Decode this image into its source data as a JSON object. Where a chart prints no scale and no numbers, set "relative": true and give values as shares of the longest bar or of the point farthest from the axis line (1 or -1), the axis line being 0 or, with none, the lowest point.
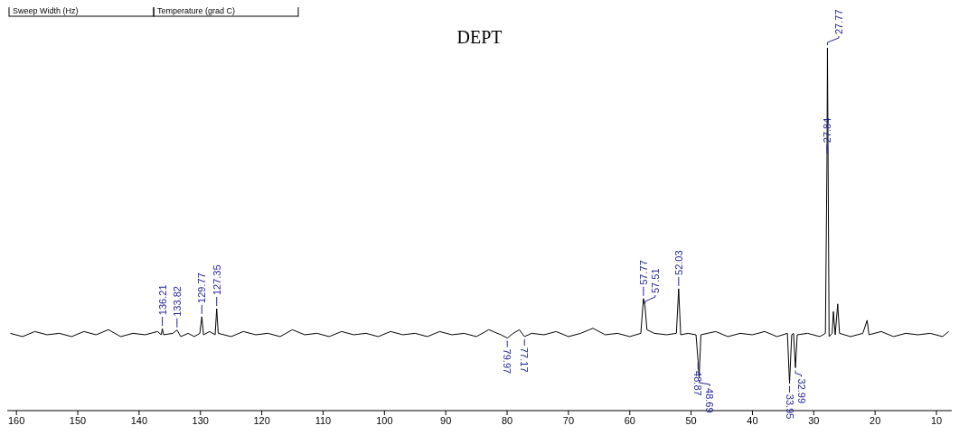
{
  "chart_data": {
    "type": "line",
    "title": "DEPT",
    "relative": true,
    "tick_labels": "x",
    "xlim": [
      161.5,
      7.5
    ],
    "xticks": [
      160,
      150,
      140,
      130,
      120,
      110,
      100,
      90,
      80,
      70,
      60,
      50,
      40,
      30,
      20,
      10
    ],
    "x": [
      161,
      159,
      157,
      155,
      153,
      151,
      149,
      147,
      145,
      143,
      141,
      139,
      137,
      136.4,
      136.21,
      136.0,
      134.5,
      133.82,
      133.2,
      132,
      131,
      130.1,
      129.77,
      129.5,
      128.5,
      127.6,
      127.35,
      127.1,
      125,
      123,
      121,
      119,
      117,
      115,
      113,
      111,
      109,
      107,
      105,
      103,
      101,
      99,
      97,
      95,
      93,
      91,
      89,
      87,
      85,
      83,
      81,
      79.97,
      79,
      78,
      77.17,
      76,
      74,
      72,
      70,
      68,
      66,
      64,
      62,
      60,
      58.2,
      57.77,
      57.51,
      57.2,
      56,
      54,
      52.4,
      52.03,
      51.7,
      50.5,
      49.2,
      48.87,
      48.69,
      48.4,
      46,
      44,
      42,
      40,
      38,
      36,
      34.3,
      33.95,
      33.6,
      33.3,
      32.99,
      32.7,
      31,
      29,
      28.1,
      27.84,
      27.77,
      27.5,
      27.0,
      26.8,
      26.5,
      26.1,
      25.8,
      24,
      22,
      21.3,
      21.0,
      19,
      17,
      15,
      13,
      11,
      9,
      8
    ],
    "series": [
      {
        "color": "#000000",
        "values": [
          0.213,
          0.204,
          0.218,
          0.209,
          0.213,
          0.204,
          0.218,
          0.209,
          0.223,
          0.204,
          0.213,
          0.209,
          0.218,
          0.209,
          0.226,
          0.209,
          0.213,
          0.222,
          0.204,
          0.213,
          0.204,
          0.213,
          0.259,
          0.209,
          0.218,
          0.209,
          0.281,
          0.213,
          0.204,
          0.218,
          0.209,
          0.213,
          0.204,
          0.223,
          0.209,
          0.213,
          0.204,
          0.218,
          0.209,
          0.213,
          0.204,
          0.218,
          0.209,
          0.213,
          0.204,
          0.218,
          0.209,
          0.213,
          0.204,
          0.223,
          0.209,
          0.2,
          0.213,
          0.223,
          0.204,
          0.213,
          0.209,
          0.218,
          0.204,
          0.213,
          0.227,
          0.209,
          0.213,
          0.204,
          0.213,
          0.309,
          0.286,
          0.223,
          0.213,
          0.209,
          0.213,
          0.336,
          0.209,
          0.213,
          0.209,
          0.139,
          0.092,
          0.209,
          0.218,
          0.204,
          0.213,
          0.209,
          0.218,
          0.204,
          0.213,
          0.075,
          0.209,
          0.213,
          0.118,
          0.209,
          0.213,
          0.204,
          0.213,
          0.701,
          1,
          0.204,
          0.213,
          0.273,
          0.209,
          0.294,
          0.213,
          0.204,
          0.213,
          0.249,
          0.209,
          0.218,
          0.204,
          0.213,
          0.209,
          0.213,
          0.204,
          0.218
        ]
      }
    ],
    "annotations": [
      "Sweep Width (Hz)",
      "Temperature (grad C)",
      {
        "text": "136.21",
        "x": 136.21,
        "y": 0.226
      },
      {
        "text": "133.82",
        "x": 133.82,
        "y": 0.222
      },
      {
        "text": "129.77",
        "x": 129.77,
        "y": 0.259
      },
      {
        "text": "127.35",
        "x": 127.35,
        "y": 0.281
      },
      {
        "text": "79.97",
        "x": 79.97,
        "y": 0.2
      },
      {
        "text": "77.17",
        "x": 77.17,
        "y": 0.204
      },
      {
        "text": "57.77",
        "x": 57.77,
        "y": 0.309
      },
      {
        "text": "57.51",
        "x": 57.51,
        "y": 0.286
      },
      {
        "text": "52.03",
        "x": 52.03,
        "y": 0.336
      },
      {
        "text": "48.87",
        "x": 48.87,
        "y": 0.139
      },
      {
        "text": "48.69",
        "x": 48.69,
        "y": 0.092
      },
      {
        "text": "33.95",
        "x": 33.95,
        "y": 0.075
      },
      {
        "text": "32.99",
        "x": 32.99,
        "y": 0.118
      },
      {
        "text": "27.84",
        "x": 27.84,
        "y": 0.701
      },
      {
        "text": "27.77",
        "x": 27.77,
        "y": 1
      }
    ]
  }
}
